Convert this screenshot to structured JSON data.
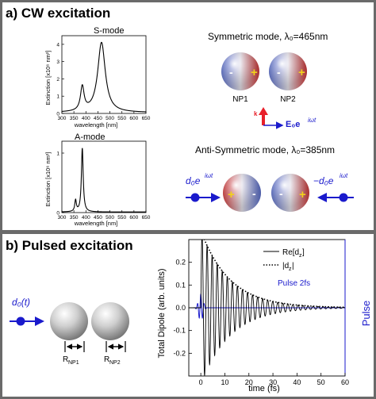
{
  "section_a": {
    "heading": "a) CW excitation",
    "s_mode_label": "S-mode",
    "a_mode_label": "A-mode",
    "symmetric_title": "Symmetric mode, λ₀=465nm",
    "antisymmetric_title": "Anti-Symmetric mode, λ₀=385nm",
    "np1_label": "NP1",
    "np2_label": "NP2",
    "k_label": "k",
    "field_label": "E₀e",
    "field_exponent": "iωt",
    "left_dipole": "d₀e",
    "left_dipole_exponent": "iωt",
    "right_dipole": "−d₀e",
    "right_dipole_exponent": "iωt",
    "minus_sign": "-",
    "plus_sign": "+"
  },
  "section_b": {
    "heading": "b) Pulsed excitation",
    "dipole_label": "d₀(t)",
    "r_np1": "R",
    "r_np1_sub": "NP1",
    "r_np2": "R",
    "r_np2_sub": "NP2"
  },
  "chart_data": [
    {
      "type": "line",
      "title": "",
      "xlabel": "wavelength [nm]",
      "ylabel": "Extinction [x10⁶ nm²]",
      "xlim": [
        300,
        650
      ],
      "ylim": [
        0,
        4.5
      ],
      "x_ticks": [
        300,
        350,
        400,
        450,
        500,
        550,
        600,
        650
      ],
      "y_ticks": [
        0,
        1,
        2,
        3,
        4
      ],
      "peaks": [
        {
          "x": 385,
          "y": 1.45,
          "width": 9
        },
        {
          "x": 465,
          "y": 4.1,
          "width": 19
        }
      ],
      "baseline": 0.05
    },
    {
      "type": "line",
      "title": "",
      "xlabel": "wavelength [nm]",
      "ylabel": "Extinction [x10⁶ nm²]",
      "xlim": [
        300,
        650
      ],
      "ylim": [
        0,
        1.2
      ],
      "x_ticks": [
        300,
        350,
        400,
        450,
        500,
        550,
        600,
        650
      ],
      "y_ticks": [
        0,
        1
      ],
      "peaks": [
        {
          "x": 357,
          "y": 0.2,
          "width": 4
        },
        {
          "x": 385,
          "y": 1.08,
          "width": 4.5
        }
      ],
      "baseline": 0.01
    },
    {
      "type": "line",
      "title": "",
      "xlabel": "time (fs)",
      "ylabel": "Total Dipole (arb. units)",
      "y2label": "Pulse",
      "xlim": [
        -5,
        60
      ],
      "ylim": [
        -0.3,
        0.3
      ],
      "x_ticks": [
        0,
        10,
        20,
        30,
        40,
        50,
        60
      ],
      "y_ticks": [
        -0.2,
        -0.1,
        0.0,
        0.1,
        0.2
      ],
      "y_tick_labels": [
        "-0.2",
        "-0.1",
        "0.0",
        "0.1",
        "0.2"
      ],
      "legend": [
        {
          "name": "Re[d",
          "sub": "z",
          "suffix": "]",
          "style": "solid"
        },
        {
          "name": "|d",
          "sub": "z",
          "suffix": "|",
          "style": "dotted"
        }
      ],
      "annotation": "Pulse 2fs",
      "signal": {
        "amplitude": 0.34,
        "period_fs": 2.1,
        "decay_fs": 12,
        "start_fs": 0
      },
      "pulse": {
        "center_fs": 0,
        "sigma_fs": 0.9,
        "period_fs": 1.4,
        "amplitude": 0.06
      }
    }
  ],
  "colors": {
    "frame": "#6a6a6a",
    "blue": "#1a1acc",
    "red": "#e8202a",
    "plus_yellow": "#f2d21a",
    "sphere_grey": "#c8c8c8"
  }
}
